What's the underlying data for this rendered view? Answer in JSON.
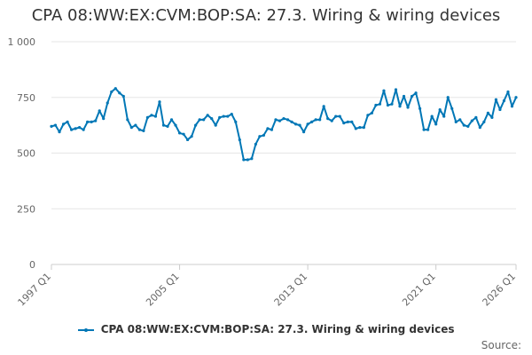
{
  "title": "CPA 08:WW:EX:CVM:BOP:SA: 27.3. Wiring & wiring devices",
  "credit": "Source:",
  "colors": {
    "series": "#0077b6",
    "grid": "#e6e6e6",
    "axis": "#cccccc"
  },
  "chart_data": {
    "type": "line",
    "title": "CPA 08:WW:EX:CVM:BOP:SA: 27.3. Wiring & wiring devices",
    "x_start": "1997 Q1",
    "x_end": "2026 Q1",
    "x_tick_labels": [
      "1997 Q1",
      "2005 Q1",
      "2013 Q1",
      "2021 Q1",
      "2026 Q1"
    ],
    "y_tick_labels": [
      "0",
      "250",
      "500",
      "750",
      "1 000"
    ],
    "y_ticks": [
      0,
      250,
      500,
      750,
      1000
    ],
    "ylim": [
      0,
      1000
    ],
    "grid": true,
    "legend": "bottom",
    "series": [
      {
        "name": "CPA 08:WW:EX:CVM:BOP:SA: 27.3. Wiring & wiring devices",
        "values": [
          620,
          625,
          595,
          630,
          640,
          605,
          610,
          615,
          605,
          640,
          640,
          645,
          690,
          655,
          725,
          775,
          790,
          770,
          755,
          650,
          615,
          625,
          605,
          600,
          660,
          670,
          665,
          730,
          625,
          620,
          650,
          625,
          590,
          585,
          560,
          575,
          625,
          650,
          650,
          670,
          655,
          625,
          660,
          665,
          665,
          675,
          640,
          560,
          470,
          470,
          475,
          540,
          575,
          580,
          610,
          605,
          650,
          645,
          655,
          650,
          640,
          630,
          625,
          595,
          630,
          640,
          650,
          650,
          710,
          655,
          645,
          665,
          665,
          635,
          640,
          640,
          610,
          615,
          615,
          670,
          680,
          715,
          720,
          780,
          715,
          720,
          785,
          710,
          755,
          705,
          755,
          770,
          700,
          605,
          605,
          665,
          630,
          695,
          665,
          750,
          700,
          640,
          650,
          625,
          620,
          645,
          660,
          615,
          640,
          680,
          660,
          740,
          695,
          735,
          775,
          710,
          750
        ]
      }
    ]
  }
}
